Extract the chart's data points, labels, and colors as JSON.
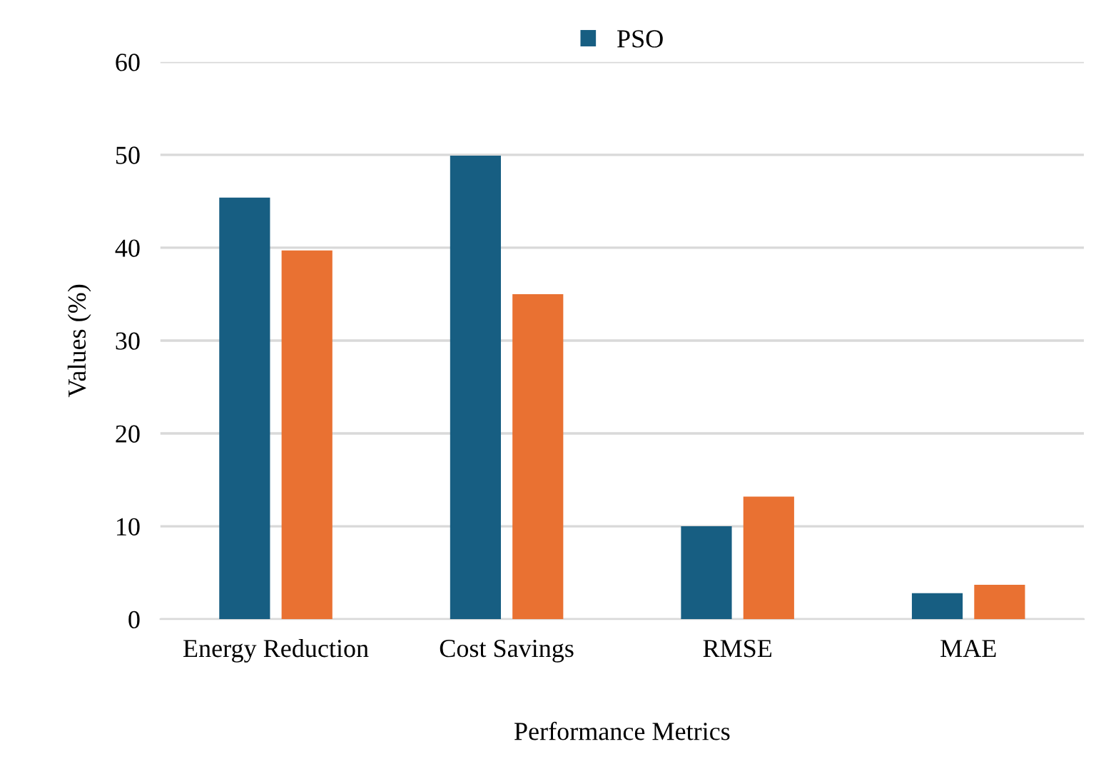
{
  "chart_data": {
    "type": "bar",
    "xlabel": "Performance Metrics",
    "ylabel": "Values (%)",
    "categories": [
      "Energy Reduction",
      "Cost Savings",
      "RMSE",
      "MAE"
    ],
    "series": [
      {
        "name": "PSO",
        "color": "#175e82",
        "values": [
          45.4,
          49.9,
          10.0,
          2.8
        ]
      },
      {
        "color": "#e97132",
        "values": [
          39.7,
          35.0,
          13.2,
          3.7
        ]
      }
    ],
    "ylim": [
      0,
      60
    ],
    "yticks": [
      0,
      10,
      20,
      30,
      40,
      50,
      60
    ],
    "grid": "y",
    "legend": "top"
  }
}
